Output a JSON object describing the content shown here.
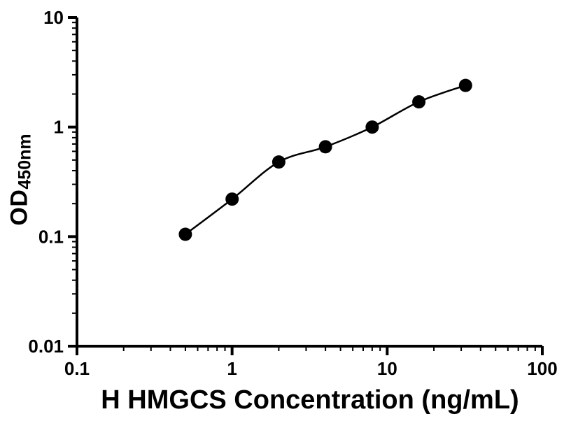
{
  "chart_data": {
    "type": "scatter",
    "title": "",
    "xlabel": "H HMGCS Concentration (ng/mL)",
    "ylabel_main": "OD",
    "ylabel_sub": "450nm",
    "x": [
      0.5,
      1,
      2,
      4,
      8,
      16,
      32
    ],
    "y": [
      0.105,
      0.22,
      0.48,
      0.66,
      1.0,
      1.7,
      2.4
    ],
    "xscale": "log",
    "yscale": "log",
    "xlim": [
      0.1,
      100
    ],
    "ylim": [
      0.01,
      10
    ],
    "x_tick_labels": [
      "0.1",
      "1",
      "10",
      "100"
    ],
    "y_tick_labels": [
      "0.01",
      "0.1",
      "1",
      "10"
    ],
    "minor_ticks": true,
    "grid": false,
    "legend": null,
    "curve": "smooth fit line through points",
    "marker": "filled-circle",
    "marker_color": "#000000",
    "line_color": "#000000",
    "axis_color": "#000000",
    "background": "#ffffff"
  }
}
